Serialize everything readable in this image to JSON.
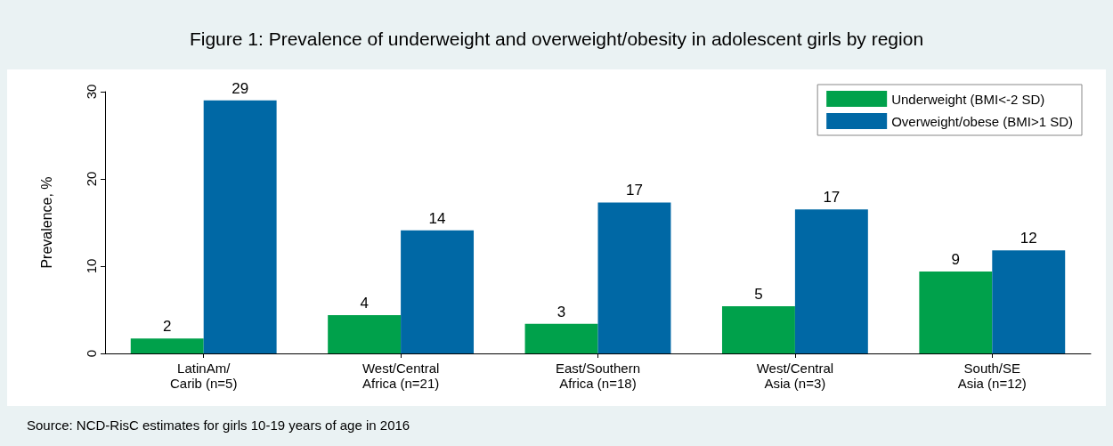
{
  "chart_data": {
    "type": "bar",
    "title": "Figure 1: Prevalence of underweight and overweight/obesity in adolescent girls by region",
    "ylabel": "Prevalence, %",
    "categories": [
      "LatinAm/\nCarib (n=5)",
      "West/Central\nAfrica (n=21)",
      "East/Southern\nAfrica (n=18)",
      "West/Central\nAsia (n=3)",
      "South/SE\nAsia (n=12)"
    ],
    "series": [
      {
        "name": "Underweight (BMI<-2 SD)",
        "color": "#00a14b",
        "values": [
          1.7,
          4.4,
          3.4,
          5.4,
          9.4
        ],
        "value_labels": [
          "2",
          "4",
          "3",
          "5",
          "9"
        ]
      },
      {
        "name": "Overweight/obese (BMI>1 SD)",
        "color": "#0068a5",
        "values": [
          29.0,
          14.1,
          17.3,
          16.5,
          11.8
        ],
        "value_labels": [
          "29",
          "14",
          "17",
          "17",
          "12"
        ]
      }
    ],
    "ylim": [
      0,
      30
    ],
    "yticks": [
      0,
      10,
      20,
      30
    ],
    "grid": false,
    "legend": "top right",
    "annotations": [
      "Source: NCD-RisC estimates for girls 10-19 years of age in 2016"
    ]
  }
}
